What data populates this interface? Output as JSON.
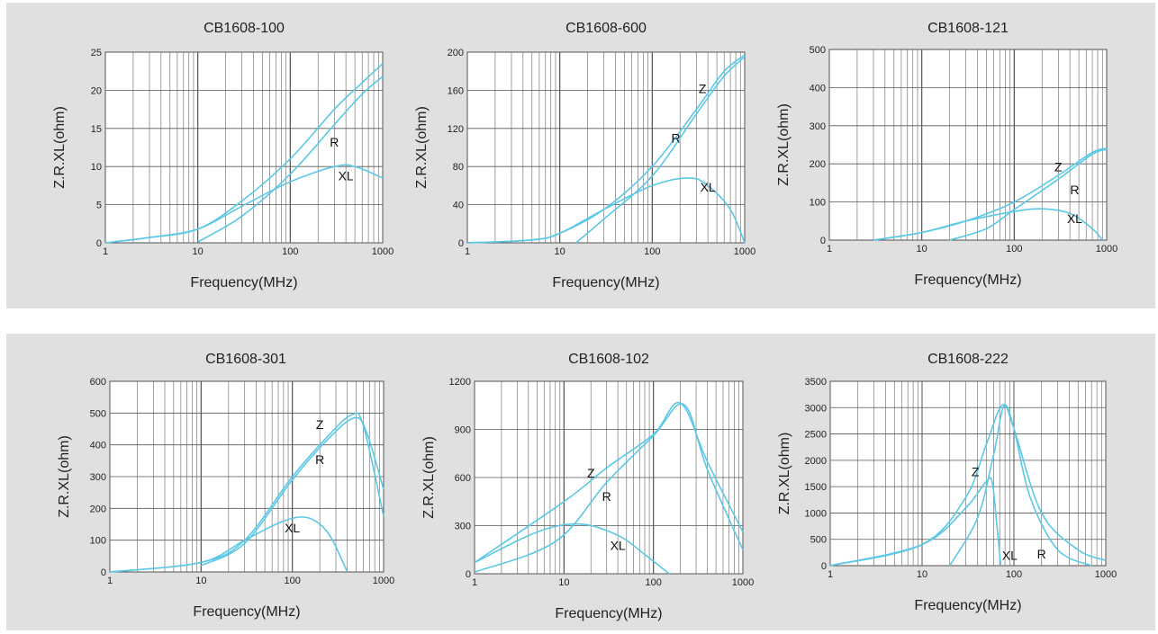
{
  "chart_data": [
    {
      "type": "line",
      "title": "CB1608-100",
      "xlabel": "Frequency(MHz)",
      "ylabel": "Z.R.XL(ohm)",
      "xscale": "log",
      "xlim": [
        1,
        1000
      ],
      "ylim": [
        0,
        25
      ],
      "xticks": [
        "1",
        "10",
        "100",
        "1000"
      ],
      "yticks": [
        "0",
        "5",
        "10",
        "15",
        "20",
        "25"
      ],
      "grid": true,
      "line_color": "#5bc8e6",
      "series": [
        {
          "name": "Z",
          "x": [
            1,
            3,
            10,
            30,
            100,
            300,
            600,
            1000
          ],
          "y": [
            0,
            0.7,
            1.8,
            5.5,
            11,
            17.5,
            21,
            23.5
          ]
        },
        {
          "name": "R",
          "x": [
            10,
            30,
            100,
            300,
            600,
            1000
          ],
          "y": [
            0.1,
            3.5,
            9,
            15.5,
            19.5,
            21.8
          ]
        },
        {
          "name": "XL",
          "x": [
            1,
            3,
            10,
            30,
            100,
            300,
            500,
            1000
          ],
          "y": [
            0,
            0.7,
            1.8,
            4.8,
            8,
            10,
            10,
            8.5
          ]
        }
      ]
    },
    {
      "type": "line",
      "title": "CB1608-600",
      "xlabel": "Frequency(MHz)",
      "ylabel": "Z.R.XL(ohm)",
      "xscale": "log",
      "xlim": [
        1,
        1000
      ],
      "ylim": [
        0,
        200
      ],
      "xticks": [
        "1",
        "10",
        "100",
        "1000"
      ],
      "yticks": [
        "0",
        "40",
        "80",
        "120",
        "160",
        "200"
      ],
      "grid": true,
      "line_color": "#5bc8e6",
      "series": [
        {
          "name": "Z",
          "x": [
            1,
            5,
            10,
            30,
            100,
            300,
            600,
            1000
          ],
          "y": [
            0,
            3,
            10,
            35,
            80,
            140,
            180,
            197
          ]
        },
        {
          "name": "R",
          "x": [
            15,
            30,
            100,
            300,
            600,
            1000
          ],
          "y": [
            0,
            25,
            70,
            135,
            175,
            195
          ]
        },
        {
          "name": "XL",
          "x": [
            1,
            5,
            10,
            30,
            100,
            250,
            400,
            700,
            1000
          ],
          "y": [
            0,
            3,
            10,
            35,
            60,
            68,
            60,
            35,
            0
          ]
        }
      ]
    },
    {
      "type": "line",
      "title": "CB1608-121",
      "xlabel": "Frequency(MHz)",
      "ylabel": "Z.R.XL(ohm)",
      "xscale": "log",
      "xlim": [
        1,
        1000
      ],
      "ylim": [
        0,
        500
      ],
      "xticks": [
        "1",
        "10",
        "100",
        "1000"
      ],
      "yticks": [
        "0",
        "100",
        "200",
        "300",
        "400",
        "500"
      ],
      "grid": true,
      "line_color": "#5bc8e6",
      "series": [
        {
          "name": "Z",
          "x": [
            3,
            10,
            30,
            100,
            300,
            700,
            1000
          ],
          "y": [
            0,
            20,
            50,
            100,
            170,
            230,
            240
          ]
        },
        {
          "name": "R",
          "x": [
            20,
            50,
            100,
            300,
            700,
            1000
          ],
          "y": [
            0,
            30,
            80,
            160,
            225,
            238
          ]
        },
        {
          "name": "XL",
          "x": [
            3,
            10,
            30,
            100,
            200,
            400,
            700,
            900
          ],
          "y": [
            0,
            20,
            50,
            75,
            82,
            70,
            30,
            0
          ]
        }
      ]
    },
    {
      "type": "line",
      "title": "CB1608-301",
      "xlabel": "Frequency(MHz)",
      "ylabel": "Z.R.XL(ohm)",
      "xscale": "log",
      "xlim": [
        1,
        1000
      ],
      "ylim": [
        0,
        600
      ],
      "xticks": [
        "1",
        "10",
        "100",
        "1000"
      ],
      "yticks": [
        "0",
        "100",
        "200",
        "300",
        "400",
        "500",
        "600"
      ],
      "grid": true,
      "line_color": "#5bc8e6",
      "series": [
        {
          "name": "Z",
          "x": [
            1,
            10,
            30,
            100,
            250,
            450,
            600,
            1000
          ],
          "y": [
            0,
            30,
            100,
            300,
            430,
            495,
            460,
            175
          ]
        },
        {
          "name": "R",
          "x": [
            10,
            30,
            100,
            250,
            480,
            650,
            1000
          ],
          "y": [
            20,
            90,
            290,
            420,
            485,
            440,
            260
          ]
        },
        {
          "name": "XL",
          "x": [
            1,
            10,
            30,
            80,
            150,
            250,
            400
          ],
          "y": [
            0,
            30,
            100,
            160,
            170,
            120,
            0
          ]
        }
      ]
    },
    {
      "type": "line",
      "title": "CB1608-102",
      "xlabel": "Frequency(MHz)",
      "ylabel": "Z.R.XL(ohm)",
      "xscale": "log",
      "xlim": [
        1,
        1000
      ],
      "ylim": [
        0,
        1200
      ],
      "xticks": [
        "1",
        "10",
        "100",
        "1000"
      ],
      "yticks": [
        "0",
        "300",
        "600",
        "900",
        "1200"
      ],
      "grid": true,
      "line_color": "#5bc8e6",
      "series": [
        {
          "name": "Z",
          "x": [
            1,
            10,
            30,
            100,
            200,
            400,
            1000
          ],
          "y": [
            70,
            450,
            660,
            870,
            1065,
            700,
            260
          ]
        },
        {
          "name": "R",
          "x": [
            1,
            8,
            30,
            100,
            220,
            400,
            1000
          ],
          "y": [
            10,
            200,
            570,
            860,
            1055,
            650,
            150
          ]
        },
        {
          "name": "XL",
          "x": [
            1,
            5,
            15,
            40,
            80,
            150
          ],
          "y": [
            70,
            260,
            310,
            240,
            120,
            0
          ]
        }
      ]
    },
    {
      "type": "line",
      "title": "CB1608-222",
      "xlabel": "Frequency(MHz)",
      "ylabel": "Z.R.XL(ohm)",
      "xscale": "log",
      "xlim": [
        1,
        1000
      ],
      "ylim": [
        0,
        3500
      ],
      "xticks": [
        "1",
        "10",
        "100",
        "1000"
      ],
      "yticks": [
        "0",
        "500",
        "1000",
        "1500",
        "2000",
        "2500",
        "3000",
        "3500"
      ],
      "grid": true,
      "line_color": "#5bc8e6",
      "series": [
        {
          "name": "Z",
          "x": [
            1,
            10,
            30,
            50,
            75,
            100,
            200,
            500,
            1000
          ],
          "y": [
            0,
            400,
            1300,
            2300,
            3050,
            2600,
            1000,
            300,
            100
          ]
        },
        {
          "name": "R",
          "x": [
            20,
            40,
            60,
            78,
            100,
            150,
            300,
            700
          ],
          "y": [
            0,
            900,
            2100,
            3030,
            2600,
            1300,
            300,
            0
          ]
        },
        {
          "name": "XL",
          "x": [
            1,
            10,
            30,
            50,
            58,
            65,
            72
          ],
          "y": [
            0,
            400,
            1100,
            1600,
            1580,
            800,
            0
          ]
        }
      ]
    }
  ]
}
